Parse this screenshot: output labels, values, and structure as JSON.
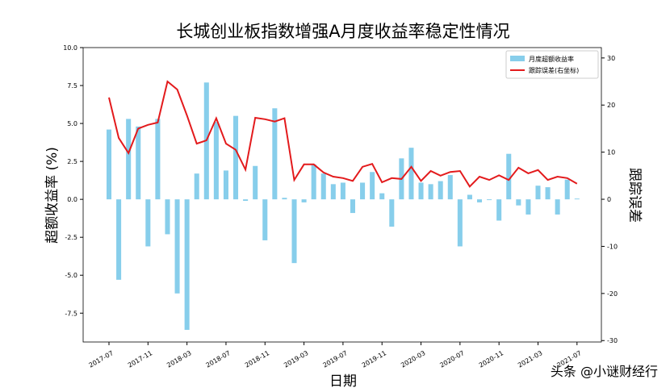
{
  "chart_data": {
    "type": "bar_line",
    "title": "长城创业板指数增强A月度收益率稳定性情况",
    "x_label": "日期",
    "y_label": "超额收益率 (%)",
    "y2_label": "跟踪误差",
    "categories": [
      "2017-07",
      null,
      null,
      null,
      "2017-11",
      null,
      null,
      null,
      "2018-03",
      null,
      null,
      null,
      "2018-07",
      null,
      null,
      null,
      "2018-11",
      null,
      null,
      null,
      "2019-03",
      null,
      null,
      null,
      "2019-07",
      null,
      null,
      null,
      "2019-11",
      null,
      null,
      null,
      "2020-03",
      null,
      null,
      null,
      "2020-07",
      null,
      null,
      null,
      "2020-11",
      null,
      null,
      null,
      "2021-03",
      null,
      null,
      null,
      "2021-07"
    ],
    "series": [
      {
        "name": "月度超额收益率",
        "type": "bar",
        "color": "#87ceeb",
        "values": [
          4.6,
          -5.3,
          5.3,
          4.8,
          -3.1,
          5.3,
          -2.3,
          -6.2,
          -8.6,
          1.7,
          7.7,
          5.1,
          1.9,
          5.5,
          -0.1,
          2.2,
          -2.7,
          6.0,
          0.1,
          -4.2,
          -0.2,
          2.3,
          1.7,
          1.0,
          1.1,
          -0.9,
          1.1,
          1.8,
          0.4,
          -1.8,
          2.7,
          3.4,
          1.1,
          1.0,
          1.2,
          1.6,
          -3.1,
          0.3,
          -0.2,
          -0.05,
          -1.4,
          3.0,
          -0.4,
          -1.0,
          0.9,
          0.8,
          -1.0,
          1.3,
          0.05
        ]
      },
      {
        "name": "跟踪误差(右坐标)",
        "type": "line",
        "axis": "y2",
        "color": "#e31a1c",
        "values": [
          21.6,
          13,
          9.8,
          15,
          15.8,
          16.3,
          25,
          23.3,
          17.8,
          11.8,
          12.5,
          17.2,
          11.8,
          10.5,
          6.3,
          17.3,
          17,
          16.5,
          17.2,
          4.1,
          7.4,
          7.4,
          5.7,
          4.8,
          4.5,
          3.9,
          6.9,
          7.5,
          3.6,
          4.5,
          4.3,
          6.9,
          3.9,
          6,
          5,
          5.8,
          6,
          2.7,
          4.8,
          4.1,
          5.1,
          4.1,
          6.7,
          5.5,
          6.2,
          4.1,
          4.8,
          4.5,
          3.3
        ]
      }
    ],
    "ylim": [
      -9.4,
      10
    ],
    "yticks": [
      {
        "value": -7.5,
        "label": "-7.5"
      },
      {
        "value": -5,
        "label": "-5.0"
      },
      {
        "value": -2.5,
        "label": "-2.5"
      },
      {
        "value": 0,
        "label": "0.0"
      },
      {
        "value": 2.5,
        "label": "2.5"
      },
      {
        "value": 5,
        "label": "5.0"
      },
      {
        "value": 7.5,
        "label": "7.5"
      },
      {
        "value": 10,
        "label": "10.0"
      }
    ],
    "y2lim": [
      -30.3,
      32.2
    ],
    "y2ticks": [
      -30,
      -20,
      -10,
      0,
      10,
      20,
      30
    ],
    "legend": "upper right",
    "watermark": "头条 @小谜财经行"
  }
}
